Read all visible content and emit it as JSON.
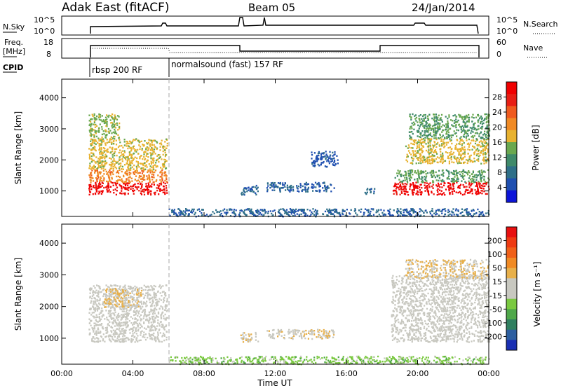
{
  "header": {
    "title": "Adak East (fitACF)",
    "beam": "Beam 05",
    "date": "24/Jan/2014"
  },
  "status_panels": {
    "nsky_label": "N.Sky",
    "nsky_ticks": [
      "10^5",
      "10^0"
    ],
    "nsearch_label": "N.Search",
    "nsearch_ticks": [
      "10^5",
      "10^0"
    ],
    "freq_label_line1": "Freq.",
    "freq_label_line2": "[MHz]",
    "freq_ticks": [
      "18",
      "8"
    ],
    "nave_label": "Nave",
    "nave_ticks": [
      "60",
      "0"
    ],
    "cpid_label": "CPID",
    "cpid_segments": [
      {
        "label": "rbsp 200 RF",
        "start_hour": 1.5
      },
      {
        "label": "normalsound (fast) 157 RF",
        "start_hour": 6.0
      }
    ]
  },
  "axes": {
    "ylabel": "Slant Range [km]",
    "xlabel": "Time UT",
    "x_ticks": [
      "00:00",
      "04:00",
      "08:00",
      "12:00",
      "16:00",
      "20:00",
      "00:00"
    ],
    "y_ticks": [
      "1000",
      "2000",
      "3000",
      "4000"
    ]
  },
  "colorbars": {
    "power": {
      "label": "Power [dB]",
      "ticks": [
        "4",
        "8",
        "12",
        "16",
        "20",
        "24",
        "28"
      ],
      "colors": [
        "#0c14d8",
        "#1f4fb0",
        "#2e6f88",
        "#3f8a6a",
        "#6aa84f",
        "#e8b230",
        "#f08a24",
        "#ef5a1e",
        "#e81e14",
        "#f00000"
      ]
    },
    "velocity": {
      "label": "Velocity [m s⁻¹]",
      "ticks": [
        "200",
        "100",
        "50",
        "15",
        "-15",
        "-50",
        "-100",
        "-200"
      ],
      "colors": [
        "#1a2fb3",
        "#2d5fa0",
        "#2f7f5f",
        "#4fa84a",
        "#7ac940",
        "#c8c8c0",
        "#c8c8c0",
        "#e8b04a",
        "#f08a24",
        "#f06018",
        "#ef3a12",
        "#e81010"
      ]
    }
  },
  "chart_data": {
    "type": "heatmap",
    "title": "Adak East (fitACF)",
    "subtitle": "Beam 05",
    "date": "24/Jan/2014",
    "xlabel": "Time UT",
    "ylabel": "Slant Range [km]",
    "xlim_hours": [
      0,
      24
    ],
    "ylim_km": [
      180,
      4600
    ],
    "panels": [
      {
        "name": "Power",
        "unit": "dB",
        "clim": [
          0,
          30
        ],
        "regions": [
          {
            "t0": 1.5,
            "t1": 5.9,
            "r0": 900,
            "r1": 1300,
            "value": 28
          },
          {
            "t0": 1.5,
            "t1": 5.9,
            "r0": 1300,
            "r1": 1700,
            "value": 20
          },
          {
            "t0": 1.5,
            "t1": 5.9,
            "r0": 1700,
            "r1": 2700,
            "value": 16
          },
          {
            "t0": 1.5,
            "t1": 3.2,
            "r0": 2700,
            "r1": 3500,
            "value": 14
          },
          {
            "t0": 10.0,
            "t1": 11.0,
            "r0": 900,
            "r1": 1200,
            "value": 6
          },
          {
            "t0": 11.5,
            "t1": 15.3,
            "r0": 1000,
            "r1": 1300,
            "value": 6
          },
          {
            "t0": 17.0,
            "t1": 17.6,
            "r0": 900,
            "r1": 1100,
            "value": 7
          },
          {
            "t0": 14.0,
            "t1": 15.5,
            "r0": 1800,
            "r1": 2300,
            "value": 5
          },
          {
            "t0": 18.5,
            "t1": 24.0,
            "r0": 900,
            "r1": 1300,
            "value": 28
          },
          {
            "t0": 18.7,
            "t1": 24.0,
            "r0": 1300,
            "r1": 1700,
            "value": 12
          },
          {
            "t0": 19.3,
            "t1": 24.0,
            "r0": 1900,
            "r1": 2700,
            "value": 16
          },
          {
            "t0": 19.5,
            "t1": 24.0,
            "r0": 2700,
            "r1": 3500,
            "value": 12
          },
          {
            "t0": 6.0,
            "t1": 24.0,
            "r0": 200,
            "r1": 450,
            "value": 6
          }
        ]
      },
      {
        "name": "Velocity",
        "unit": "m s⁻¹",
        "clim": [
          -250,
          250
        ],
        "regions": [
          {
            "t0": 1.5,
            "t1": 5.9,
            "r0": 900,
            "r1": 2700,
            "value": 0
          },
          {
            "t0": 2.3,
            "t1": 4.5,
            "r0": 2000,
            "r1": 2600,
            "value": 40
          },
          {
            "t0": 10.0,
            "t1": 11.0,
            "r0": 900,
            "r1": 1200,
            "value": 35
          },
          {
            "t0": 11.5,
            "t1": 15.3,
            "r0": 1000,
            "r1": 1300,
            "value": 30
          },
          {
            "t0": 18.5,
            "t1": 24.0,
            "r0": 900,
            "r1": 3000,
            "value": 0
          },
          {
            "t0": 19.3,
            "t1": 24.0,
            "r0": 2900,
            "r1": 3500,
            "value": 40
          },
          {
            "t0": 6.0,
            "t1": 24.0,
            "r0": 200,
            "r1": 450,
            "value": -60
          }
        ]
      }
    ]
  }
}
